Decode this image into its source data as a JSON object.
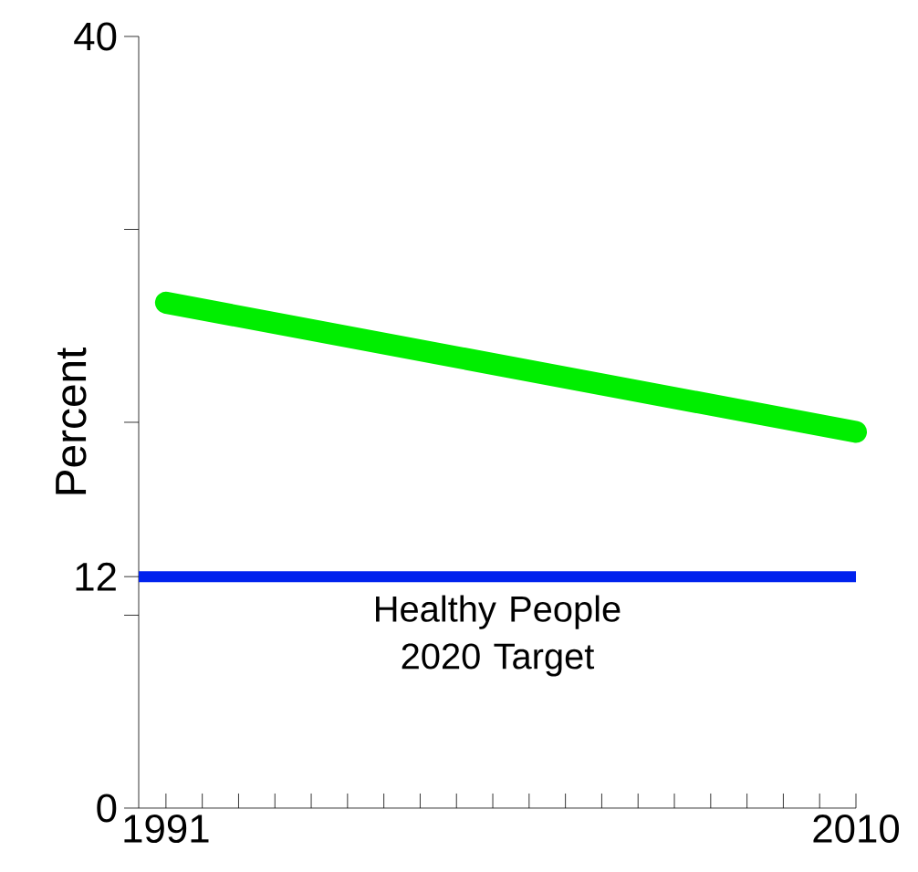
{
  "chart_data": {
    "type": "line",
    "ylabel": "Percent",
    "x": [
      1991,
      2010
    ],
    "series": [
      {
        "color": "#00ee00",
        "values": [
          26.2,
          19.5
        ]
      }
    ],
    "xlim": [
      1990.25,
      2010
    ],
    "ylim": [
      0,
      40
    ],
    "xticks": [
      {
        "value": 1991,
        "label": "1991"
      },
      {
        "value": 1992,
        "label": null
      },
      {
        "value": 1993,
        "label": null
      },
      {
        "value": 1994,
        "label": null
      },
      {
        "value": 1995,
        "label": null
      },
      {
        "value": 1996,
        "label": null
      },
      {
        "value": 1997,
        "label": null
      },
      {
        "value": 1998,
        "label": null
      },
      {
        "value": 1999,
        "label": null
      },
      {
        "value": 2000,
        "label": null
      },
      {
        "value": 2001,
        "label": null
      },
      {
        "value": 2002,
        "label": null
      },
      {
        "value": 2003,
        "label": null
      },
      {
        "value": 2004,
        "label": null
      },
      {
        "value": 2005,
        "label": null
      },
      {
        "value": 2006,
        "label": null
      },
      {
        "value": 2007,
        "label": null
      },
      {
        "value": 2008,
        "label": null
      },
      {
        "value": 2009,
        "label": null
      },
      {
        "value": 2010,
        "label": "2010"
      }
    ],
    "yticks": [
      0,
      {
        "value": 10,
        "label": null
      },
      12,
      {
        "value": 20,
        "label": null
      },
      {
        "value": 30,
        "label": null
      },
      40
    ],
    "ref_lines": [
      {
        "axis": "y",
        "value": 12,
        "label": "Healthy People 2020 Target",
        "color": "#0022ee"
      }
    ],
    "grid": false,
    "marker": "none",
    "line_style": "solid"
  }
}
